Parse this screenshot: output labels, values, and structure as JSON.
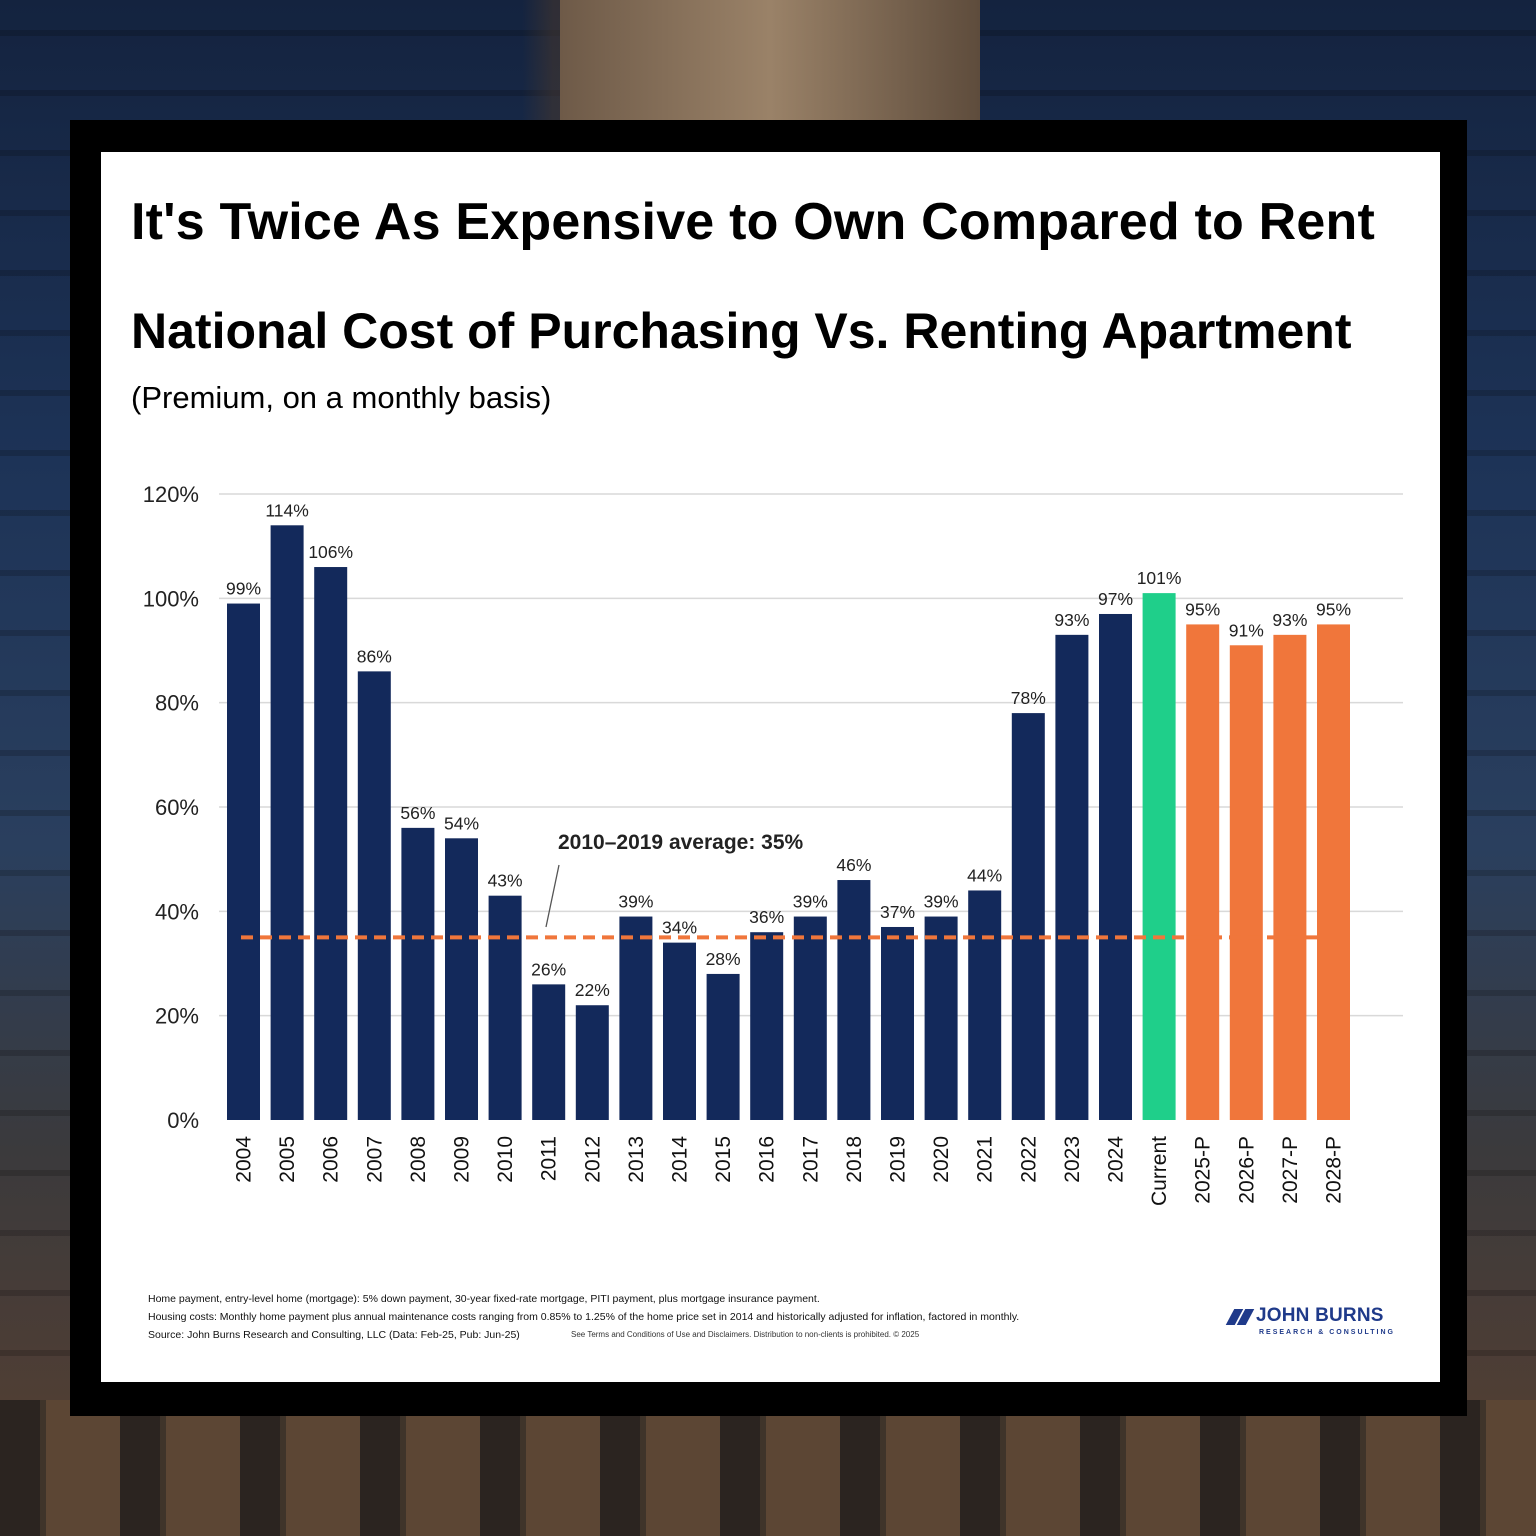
{
  "headline": "It's Twice As Expensive to Own Compared to Rent",
  "chart_data": {
    "type": "bar",
    "title": "National Cost of Purchasing Vs. Renting Apartment",
    "subtitle": "(Premium, on a monthly basis)",
    "categories": [
      "2004",
      "2005",
      "2006",
      "2007",
      "2008",
      "2009",
      "2010",
      "2011",
      "2012",
      "2013",
      "2014",
      "2015",
      "2016",
      "2017",
      "2018",
      "2019",
      "2020",
      "2021",
      "2022",
      "2023",
      "2024",
      "Current",
      "2025-P",
      "2026-P",
      "2027-P",
      "2028-P"
    ],
    "values": [
      99,
      114,
      106,
      86,
      56,
      54,
      43,
      26,
      22,
      39,
      34,
      28,
      36,
      39,
      46,
      37,
      39,
      44,
      78,
      93,
      97,
      101,
      95,
      91,
      93,
      95
    ],
    "data_labels": [
      "99%",
      "114%",
      "106%",
      "86%",
      "56%",
      "54%",
      "43%",
      "26%",
      "22%",
      "39%",
      "34%",
      "28%",
      "36%",
      "39%",
      "46%",
      "37%",
      "39%",
      "44%",
      "78%",
      "93%",
      "97%",
      "101%",
      "95%",
      "91%",
      "93%",
      "95%"
    ],
    "bar_groups": [
      "historical",
      "historical",
      "historical",
      "historical",
      "historical",
      "historical",
      "historical",
      "historical",
      "historical",
      "historical",
      "historical",
      "historical",
      "historical",
      "historical",
      "historical",
      "historical",
      "historical",
      "historical",
      "historical",
      "historical",
      "historical",
      "current",
      "projected",
      "projected",
      "projected",
      "projected"
    ],
    "colors": {
      "historical": "#13295b",
      "current": "#1fcf8a",
      "projected": "#f0763b",
      "average_line": "#f0763b"
    },
    "ylim": [
      0,
      120
    ],
    "yticks": [
      0,
      20,
      40,
      60,
      80,
      100,
      120
    ],
    "ytick_labels": [
      "0%",
      "20%",
      "40%",
      "60%",
      "80%",
      "100%",
      "120%"
    ],
    "grid": true,
    "reference_line": {
      "value": 35,
      "label": "2010–2019 average: 35%",
      "style": "dashed"
    }
  },
  "footnotes": [
    "Home payment, entry-level home (mortgage): 5% down payment, 30-year fixed-rate mortgage, PITI payment, plus mortgage insurance payment.",
    "Housing costs: Monthly home payment plus annual maintenance costs ranging from 0.85% to 1.25% of the home price set in 2014 and historically adjusted for inflation, factored in monthly.",
    "Source: John Burns Research and Consulting, LLC (Data: Feb-25, Pub: Jun-25)"
  ],
  "disclaimer": "See Terms and Conditions of Use and Disclaimers. Distribution to non-clients is prohibited. © 2025",
  "logo": {
    "name": "JOHN BURNS",
    "tagline": "RESEARCH & CONSULTING"
  }
}
